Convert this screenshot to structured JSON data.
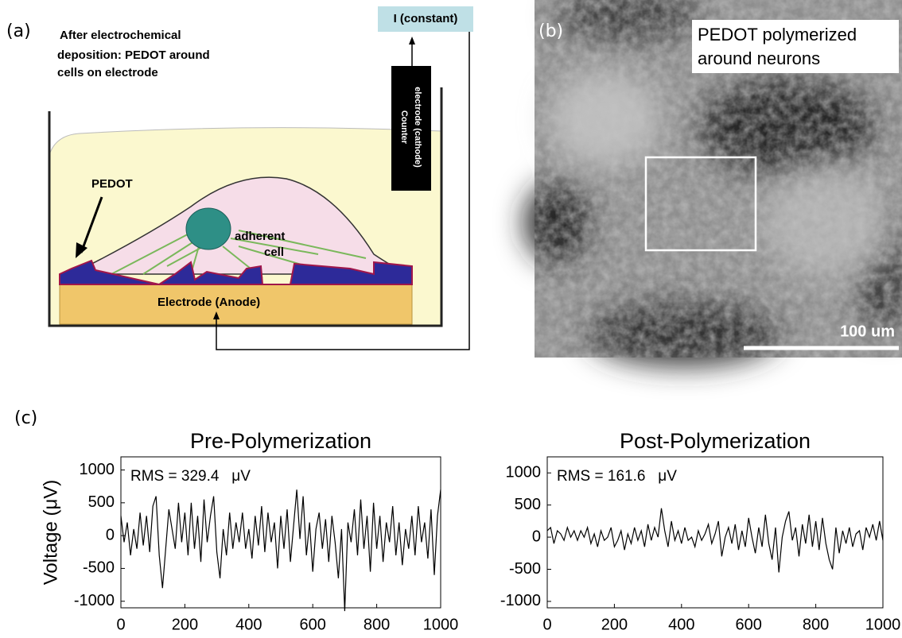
{
  "panel_a": {
    "label": "(a)",
    "caption": [
      "After electrochemical",
      "deposition: PEDOT around",
      "cells on electrode"
    ],
    "source": "I (constant)",
    "counter": [
      "Counter",
      "electrode (cathode)"
    ],
    "pedot": "PEDOT",
    "cell": [
      "adherent",
      "cell"
    ],
    "electrode": "Electrode (Anode)"
  },
  "panel_b": {
    "label": "(b)",
    "caption": [
      "PEDOT polymerized",
      "around neurons"
    ],
    "scale": "100 um"
  },
  "panel_c": {
    "label": "(c)"
  },
  "chart_data": [
    {
      "type": "line",
      "title": "Pre-Polymerization",
      "annotation": "RMS = 329.4   μV",
      "ylabel": "Voltage (μV)",
      "color": "#000000",
      "x": [
        0,
        10,
        20,
        30,
        40,
        50,
        60,
        70,
        80,
        90,
        100,
        110,
        120,
        130,
        140,
        150,
        160,
        170,
        180,
        190,
        200,
        210,
        220,
        230,
        240,
        250,
        260,
        270,
        280,
        290,
        300,
        310,
        320,
        330,
        340,
        350,
        360,
        370,
        380,
        390,
        400,
        410,
        420,
        430,
        440,
        450,
        460,
        470,
        480,
        490,
        500,
        510,
        520,
        530,
        540,
        550,
        560,
        570,
        580,
        590,
        600,
        610,
        620,
        630,
        640,
        650,
        660,
        670,
        680,
        690,
        700,
        710,
        720,
        730,
        740,
        750,
        760,
        770,
        780,
        790,
        800,
        810,
        820,
        830,
        840,
        850,
        860,
        870,
        880,
        890,
        900,
        910,
        920,
        930,
        940,
        950,
        960,
        970,
        980,
        990,
        1000
      ],
      "values": [
        300,
        -100,
        200,
        -300,
        100,
        -200,
        350,
        -150,
        300,
        -250,
        450,
        600,
        -300,
        -800,
        -200,
        400,
        100,
        -200,
        500,
        -100,
        350,
        -300,
        500,
        -200,
        300,
        -400,
        550,
        -100,
        300,
        600,
        -250,
        -650,
        100,
        -300,
        350,
        -200,
        200,
        -100,
        350,
        -200,
        100,
        -350,
        300,
        -150,
        450,
        -250,
        350,
        -100,
        200,
        -500,
        300,
        -200,
        400,
        -400,
        150,
        700,
        -50,
        600,
        -300,
        200,
        -550,
        100,
        350,
        -200,
        250,
        -400,
        300,
        -100,
        -650,
        100,
        -1150,
        200,
        -100,
        400,
        -300,
        550,
        -200,
        300,
        -550,
        500,
        -200,
        300,
        -400,
        200,
        -100,
        450,
        -300,
        200,
        -450,
        100,
        -200,
        300,
        -300,
        450,
        -100,
        200,
        -350,
        400,
        -600,
        300,
        700
      ],
      "xlim": [
        0,
        1000
      ],
      "ylim": [
        -1100,
        1200
      ],
      "xticks": [
        0,
        200,
        400,
        600,
        800,
        1000
      ],
      "yticks": [
        1000,
        500,
        0,
        -500,
        -1000
      ]
    },
    {
      "type": "line",
      "title": "Post-Polymerization",
      "annotation": "RMS = 161.6   μV",
      "color": "#000000",
      "x": [
        0,
        10,
        20,
        30,
        40,
        50,
        60,
        70,
        80,
        90,
        100,
        110,
        120,
        130,
        140,
        150,
        160,
        170,
        180,
        190,
        200,
        210,
        220,
        230,
        240,
        250,
        260,
        270,
        280,
        290,
        300,
        310,
        320,
        330,
        340,
        350,
        360,
        370,
        380,
        390,
        400,
        410,
        420,
        430,
        440,
        450,
        460,
        470,
        480,
        490,
        500,
        510,
        520,
        530,
        540,
        550,
        560,
        570,
        580,
        590,
        600,
        610,
        620,
        630,
        640,
        650,
        660,
        670,
        680,
        690,
        700,
        710,
        720,
        730,
        740,
        750,
        760,
        770,
        780,
        790,
        800,
        810,
        820,
        830,
        840,
        850,
        860,
        870,
        880,
        890,
        900,
        910,
        920,
        930,
        940,
        950,
        960,
        970,
        980,
        990,
        1000
      ],
      "values": [
        100,
        150,
        -100,
        100,
        50,
        -50,
        150,
        0,
        100,
        -50,
        100,
        0,
        150,
        -100,
        50,
        -150,
        100,
        -50,
        0,
        150,
        -150,
        -50,
        100,
        -200,
        50,
        -100,
        150,
        -50,
        100,
        -150,
        200,
        -50,
        150,
        0,
        450,
        100,
        -150,
        250,
        -50,
        100,
        -100,
        150,
        -50,
        0,
        -150,
        100,
        -50,
        50,
        200,
        -100,
        50,
        250,
        -300,
        0,
        150,
        -100,
        200,
        -200,
        100,
        -150,
        300,
        0,
        -250,
        150,
        -150,
        350,
        -100,
        -350,
        150,
        -550,
        0,
        250,
        400,
        -50,
        150,
        -300,
        200,
        -100,
        350,
        -150,
        250,
        -200,
        300,
        -100,
        -350,
        -500,
        150,
        -250,
        100,
        -100,
        150,
        -150,
        50,
        100,
        -200,
        150,
        0,
        200,
        -50,
        250,
        -50
      ],
      "xlim": [
        0,
        1000
      ],
      "ylim": [
        -1100,
        1250
      ],
      "xticks": [
        0,
        200,
        400,
        600,
        800,
        1000
      ],
      "yticks": [
        1000,
        500,
        0,
        -500,
        -1000
      ]
    }
  ]
}
